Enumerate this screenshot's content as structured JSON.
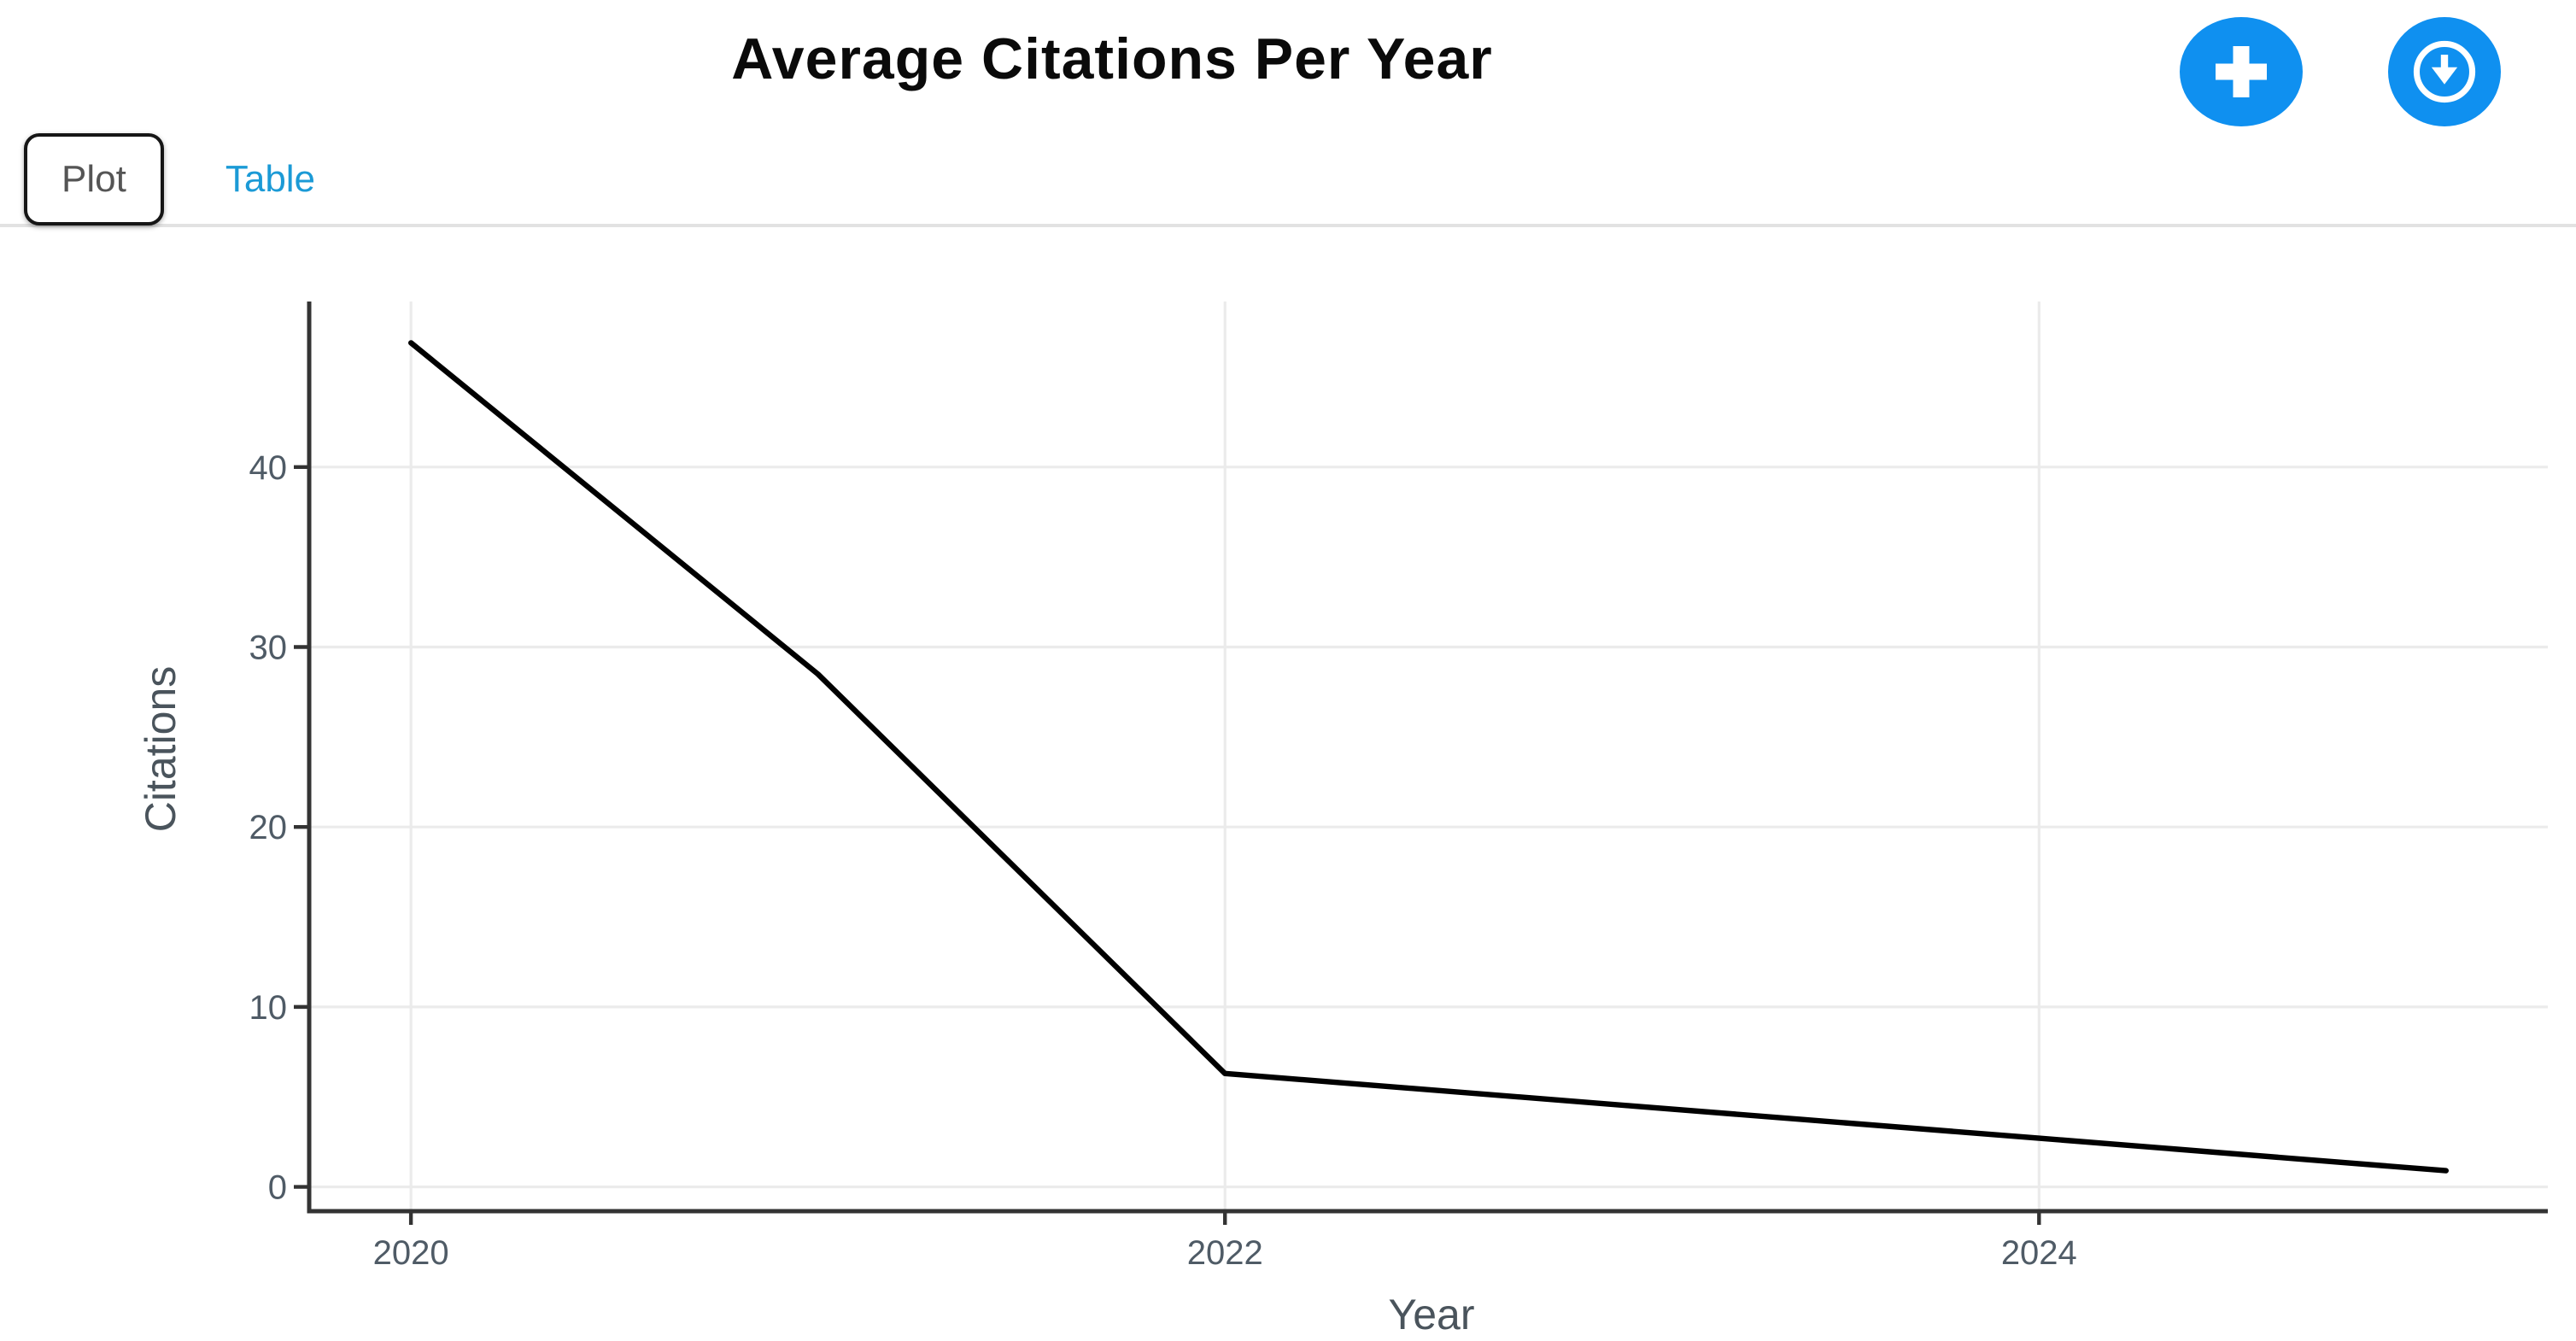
{
  "header": {
    "title": "Average Citations Per Year",
    "add_button": {
      "icon": "plus-icon"
    },
    "download_button": {
      "icon": "download-icon"
    },
    "button_color": "#0f90f0",
    "button_icon_color": "#ffffff"
  },
  "tabs": {
    "items": [
      {
        "label": "Plot",
        "active": true
      },
      {
        "label": "Table",
        "active": false
      }
    ],
    "active_text_color": "#555555",
    "inactive_text_color": "#1b9ad6"
  },
  "chart_data": {
    "type": "line",
    "title": "Average Citations Per Year",
    "x": [
      2020,
      2021,
      2022,
      2023,
      2024,
      2025
    ],
    "values": [
      46.9,
      28.5,
      6.3,
      4.5,
      2.7,
      0.9
    ],
    "xlabel": "Year",
    "ylabel": "Citations",
    "xticks": [
      2020,
      2022,
      2024
    ],
    "yticks": [
      0,
      10,
      20,
      30,
      40
    ],
    "xlim": [
      2019.75,
      2025.25
    ],
    "ylim": [
      -1.35,
      49.2
    ],
    "grid": true,
    "legend": false,
    "line_color": "#000000",
    "grid_color": "#ebebeb",
    "axis_color": "#333333",
    "tick_label_color": "#4f5b66",
    "axis_label_color": "#4a545c"
  }
}
